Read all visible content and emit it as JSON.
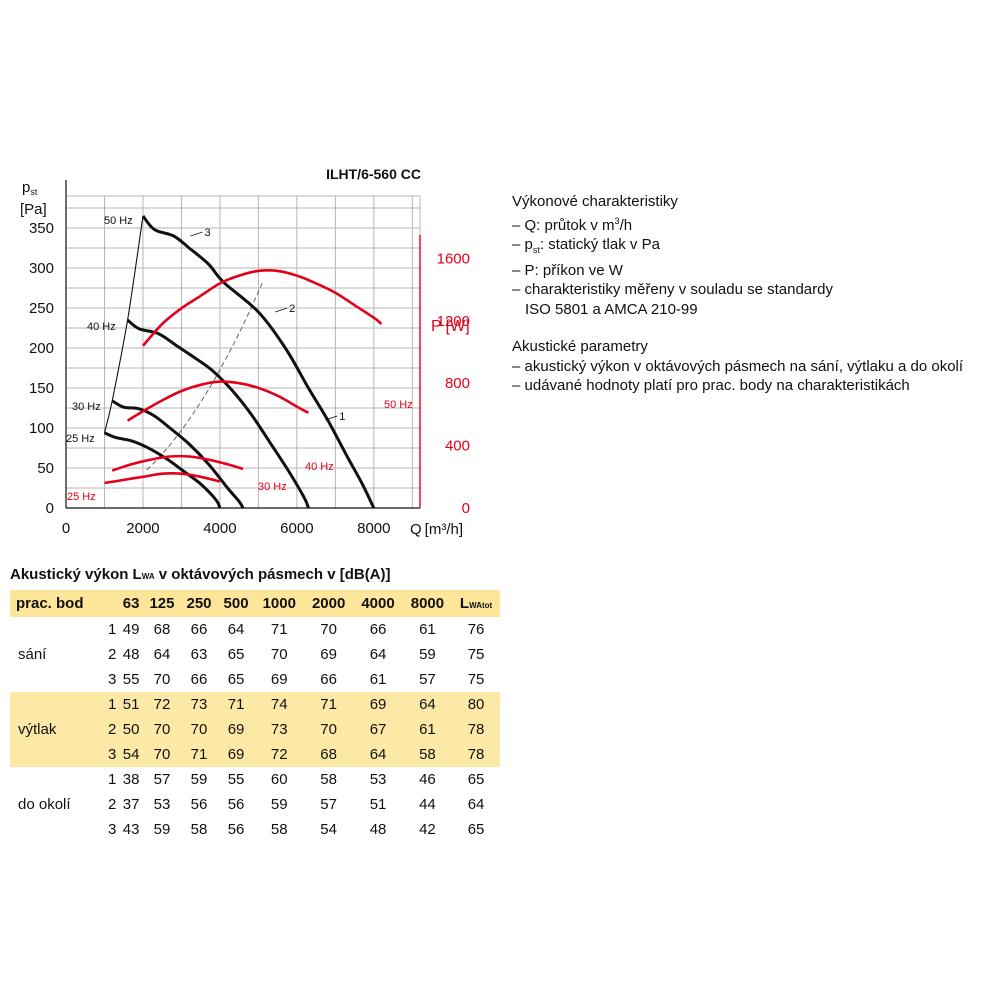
{
  "chart_data": {
    "type": "line",
    "title": "ILHT/6-560 CC",
    "xlabel": "Q [m³/h]",
    "x_label_main": "Q",
    "x_label_unit": "[m³/h]",
    "ylabel_left_main": "p",
    "ylabel_left_sub": "st",
    "ylabel_left_unit": "[Pa]",
    "ylabel_right_main": "P",
    "ylabel_right_unit": "[W]",
    "xlim": [
      0,
      9200
    ],
    "ylim_left": [
      0,
      390
    ],
    "ylim_right": [
      0,
      2000
    ],
    "x_ticks": [
      "0",
      "2000",
      "4000",
      "6000",
      "8000"
    ],
    "y_ticks_left": [
      "0",
      "50",
      "100",
      "150",
      "200",
      "250",
      "300",
      "350"
    ],
    "y_ticks_right": [
      "0",
      "400",
      "800",
      "1200",
      "1600"
    ],
    "grid": true,
    "pressure_series": [
      {
        "name": "50 Hz",
        "points": [
          [
            2000,
            365
          ],
          [
            2300,
            348
          ],
          [
            2800,
            340
          ],
          [
            3200,
            325
          ],
          [
            3700,
            305
          ],
          [
            4100,
            282
          ],
          [
            5000,
            245
          ],
          [
            5700,
            200
          ],
          [
            6300,
            150
          ],
          [
            6800,
            110
          ],
          [
            7300,
            65
          ],
          [
            7700,
            30
          ],
          [
            8000,
            0
          ]
        ]
      },
      {
        "name": "40 Hz",
        "points": [
          [
            1600,
            235
          ],
          [
            1900,
            224
          ],
          [
            2400,
            218
          ],
          [
            2900,
            202
          ],
          [
            3400,
            186
          ],
          [
            3800,
            172
          ],
          [
            4300,
            148
          ],
          [
            4800,
            118
          ],
          [
            5300,
            82
          ],
          [
            5800,
            45
          ],
          [
            6200,
            12
          ],
          [
            6300,
            0
          ]
        ]
      },
      {
        "name": "30 Hz",
        "points": [
          [
            1200,
            134
          ],
          [
            1500,
            126
          ],
          [
            1900,
            124
          ],
          [
            2300,
            115
          ],
          [
            2700,
            100
          ],
          [
            3200,
            80
          ],
          [
            3700,
            55
          ],
          [
            4200,
            25
          ],
          [
            4500,
            8
          ],
          [
            4600,
            0
          ]
        ]
      },
      {
        "name": "25 Hz",
        "points": [
          [
            1000,
            94
          ],
          [
            1300,
            88
          ],
          [
            1700,
            84
          ],
          [
            2100,
            76
          ],
          [
            2600,
            62
          ],
          [
            3000,
            48
          ],
          [
            3500,
            30
          ],
          [
            3900,
            10
          ],
          [
            4000,
            0
          ]
        ]
      }
    ],
    "power_series": [
      {
        "name": "50 Hz",
        "points": [
          [
            2000,
            1040
          ],
          [
            2500,
            1180
          ],
          [
            3000,
            1280
          ],
          [
            3500,
            1360
          ],
          [
            4000,
            1440
          ],
          [
            4500,
            1490
          ],
          [
            5000,
            1520
          ],
          [
            5500,
            1520
          ],
          [
            6000,
            1490
          ],
          [
            6500,
            1440
          ],
          [
            7000,
            1380
          ],
          [
            7500,
            1300
          ],
          [
            8000,
            1220
          ],
          [
            8200,
            1180
          ]
        ]
      },
      {
        "name": "40 Hz",
        "points": [
          [
            1600,
            560
          ],
          [
            2000,
            620
          ],
          [
            2500,
            690
          ],
          [
            3000,
            750
          ],
          [
            3500,
            790
          ],
          [
            4000,
            810
          ],
          [
            4500,
            800
          ],
          [
            5000,
            770
          ],
          [
            5500,
            720
          ],
          [
            6000,
            650
          ],
          [
            6300,
            610
          ]
        ]
      },
      {
        "name": "30 Hz",
        "points": [
          [
            1200,
            240
          ],
          [
            1700,
            280
          ],
          [
            2200,
            310
          ],
          [
            2700,
            330
          ],
          [
            3200,
            330
          ],
          [
            3700,
            310
          ],
          [
            4200,
            280
          ],
          [
            4600,
            250
          ]
        ]
      },
      {
        "name": "25 Hz",
        "points": [
          [
            1000,
            160
          ],
          [
            1500,
            180
          ],
          [
            2000,
            200
          ],
          [
            2500,
            220
          ],
          [
            3000,
            220
          ],
          [
            3500,
            200
          ],
          [
            4000,
            170
          ]
        ]
      }
    ],
    "system_curves": [
      {
        "points": [
          [
            2000,
            0
          ],
          [
            6400,
            0
          ]
        ]
      }
    ],
    "point_labels": [
      {
        "text": "1",
        "q": 7100,
        "p": 115
      },
      {
        "text": "2",
        "q": 5800,
        "p": 250
      },
      {
        "text": "3",
        "q": 3600,
        "p": 345
      }
    ]
  },
  "info": {
    "heading1": "Výkonové charakteristiky",
    "line_q_pre": "– Q: průtok v m",
    "line_q_sup": "3",
    "line_q_post": "/h",
    "line_p_pre": "– p",
    "line_p_sub": "st",
    "line_p_post": ": statický tlak v Pa",
    "line_power": "– P: příkon ve W",
    "line_std1": "– charakteristiky měřeny v souladu se standardy",
    "line_std2": "ISO 5801 a AMCA 210-99",
    "heading2": "Akustické parametry",
    "line_ac1": "– akustický výkon v oktávových pásmech na sání, výtlaku a do okolí",
    "line_ac2": "– udávané hodnoty platí pro prac. body na charakteristikách"
  },
  "table": {
    "title_pre": "Akustický výkon L",
    "title_sub": "WA",
    "title_post": " v oktávových pásmech v [dB(A)]",
    "header_first": "prac. bod",
    "bands": [
      "63",
      "125",
      "250",
      "500",
      "1000",
      "2000",
      "4000",
      "8000"
    ],
    "header_last_main": "L",
    "header_last_sub": "WAtot",
    "groups": [
      {
        "name": "sání",
        "rows": [
          {
            "pt": "1",
            "vals": [
              "49",
              "68",
              "66",
              "64",
              "71",
              "70",
              "66",
              "61",
              "76"
            ]
          },
          {
            "pt": "2",
            "vals": [
              "48",
              "64",
              "63",
              "65",
              "70",
              "69",
              "64",
              "59",
              "75"
            ]
          },
          {
            "pt": "3",
            "vals": [
              "55",
              "70",
              "66",
              "65",
              "69",
              "66",
              "61",
              "57",
              "75"
            ]
          }
        ]
      },
      {
        "name": "výtlak",
        "rows": [
          {
            "pt": "1",
            "vals": [
              "51",
              "72",
              "73",
              "71",
              "74",
              "71",
              "69",
              "64",
              "80"
            ]
          },
          {
            "pt": "2",
            "vals": [
              "50",
              "70",
              "70",
              "69",
              "73",
              "70",
              "67",
              "61",
              "78"
            ]
          },
          {
            "pt": "3",
            "vals": [
              "54",
              "70",
              "71",
              "69",
              "72",
              "68",
              "64",
              "58",
              "78"
            ]
          }
        ]
      },
      {
        "name": "do okolí",
        "rows": [
          {
            "pt": "1",
            "vals": [
              "38",
              "57",
              "59",
              "55",
              "60",
              "58",
              "53",
              "46",
              "65"
            ]
          },
          {
            "pt": "2",
            "vals": [
              "37",
              "53",
              "56",
              "56",
              "59",
              "57",
              "51",
              "44",
              "64"
            ]
          },
          {
            "pt": "3",
            "vals": [
              "43",
              "59",
              "58",
              "56",
              "58",
              "54",
              "48",
              "42",
              "65"
            ]
          }
        ]
      }
    ]
  },
  "colors": {
    "pressure": "#111111",
    "power": "#e3001b",
    "grid": "#b5b5b5",
    "table_band": "#fde69a"
  }
}
